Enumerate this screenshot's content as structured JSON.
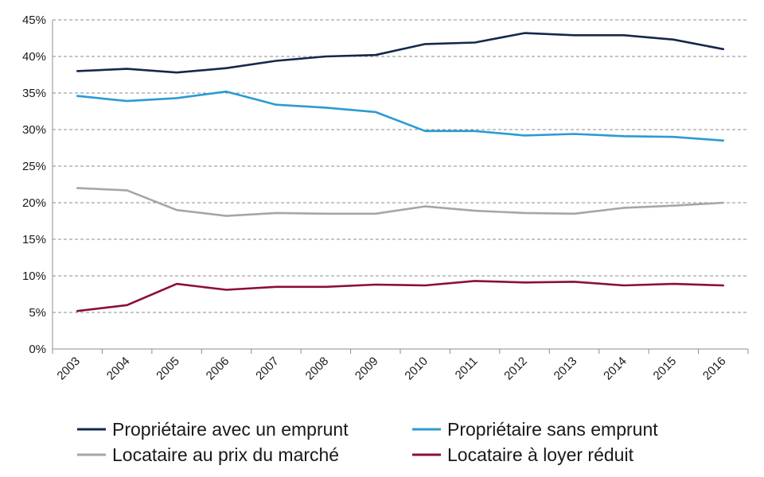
{
  "chart_data": {
    "type": "line",
    "title": "",
    "xlabel": "",
    "ylabel": "",
    "categories": [
      "2003",
      "2004",
      "2005",
      "2006",
      "2007",
      "2008",
      "2009",
      "2010",
      "2011",
      "2012",
      "2013",
      "2014",
      "2015",
      "2016"
    ],
    "ylim": [
      0,
      45
    ],
    "yticks": [
      {
        "value": 0,
        "label": "0%"
      },
      {
        "value": 5,
        "label": "5%"
      },
      {
        "value": 10,
        "label": "10%"
      },
      {
        "value": 15,
        "label": "15%"
      },
      {
        "value": 20,
        "label": "20%"
      },
      {
        "value": 25,
        "label": "25%"
      },
      {
        "value": 30,
        "label": "30%"
      },
      {
        "value": 35,
        "label": "35%"
      },
      {
        "value": 40,
        "label": "40%"
      },
      {
        "value": 45,
        "label": "45%"
      }
    ],
    "grid": "horizontal dashed",
    "legend_position": "bottom",
    "series": [
      {
        "name": "Propriétaire avec un emprunt",
        "color": "#13294b",
        "values": [
          38.0,
          38.3,
          37.8,
          38.4,
          39.4,
          40.0,
          40.2,
          41.7,
          41.9,
          43.2,
          42.9,
          42.9,
          42.3,
          41.0
        ]
      },
      {
        "name": "Propriétaire sans emprunt",
        "color": "#2b9bd3",
        "values": [
          34.6,
          33.9,
          34.3,
          35.2,
          33.4,
          33.0,
          32.4,
          29.8,
          29.8,
          29.2,
          29.4,
          29.1,
          29.0,
          28.5
        ]
      },
      {
        "name": "Locataire au prix du marché",
        "color": "#a6a6a6",
        "values": [
          22.0,
          21.7,
          19.0,
          18.2,
          18.6,
          18.5,
          18.5,
          19.5,
          18.9,
          18.6,
          18.5,
          19.3,
          19.6,
          20.0
        ]
      },
      {
        "name": "Locataire à loyer réduit",
        "color": "#8b1033",
        "values": [
          5.2,
          6.0,
          8.9,
          8.1,
          8.5,
          8.5,
          8.8,
          8.7,
          9.3,
          9.1,
          9.2,
          8.7,
          8.9,
          8.7
        ]
      }
    ]
  }
}
